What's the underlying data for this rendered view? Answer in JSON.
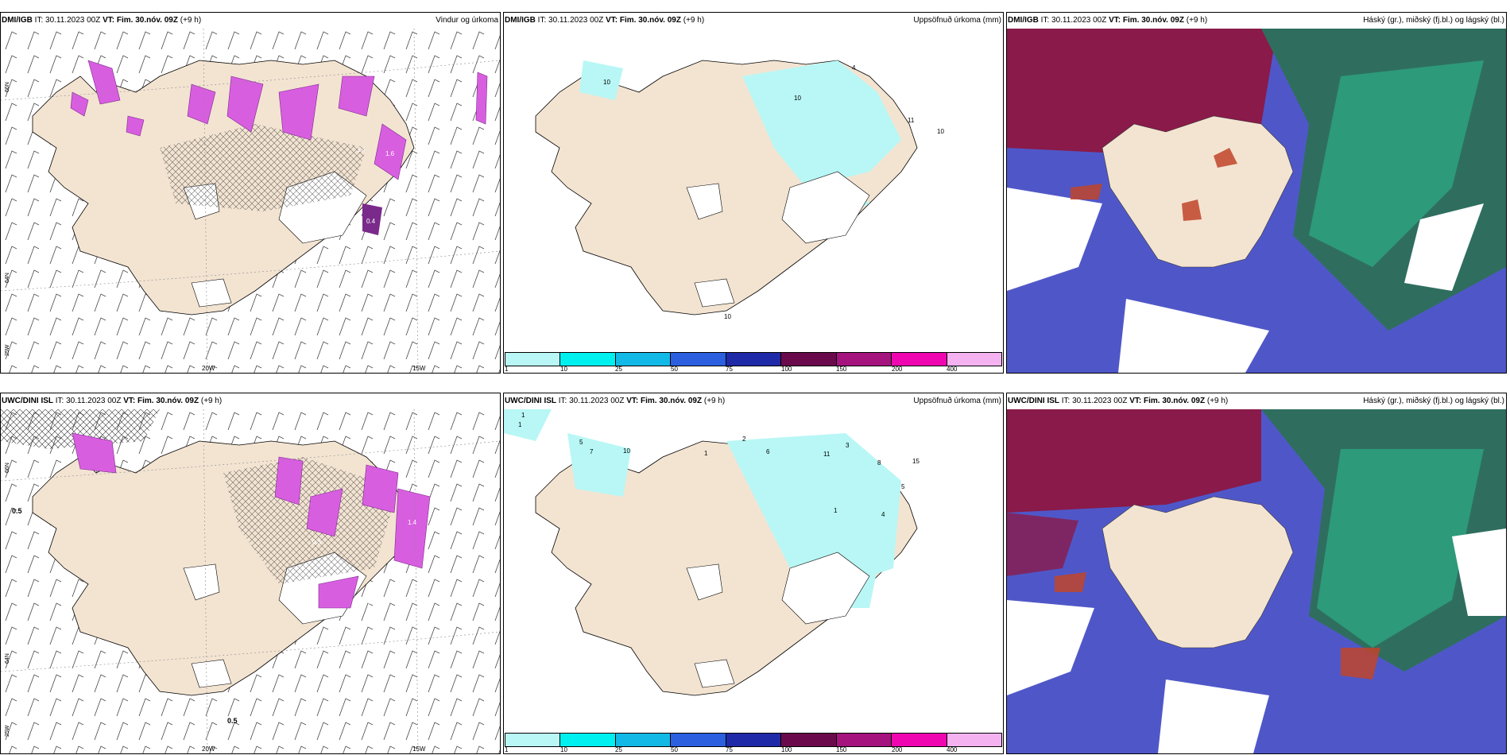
{
  "panels": [
    {
      "source": "DMI/IGB",
      "it_label": "IT:",
      "it": "30.11.2023 00Z",
      "vt_label": "VT:",
      "vt": "Fim. 30.nóv. 09Z",
      "lead": "(+9 h)",
      "title": "Vindur og úrkoma"
    },
    {
      "source": "DMI/IGB",
      "it_label": "IT:",
      "it": "30.11.2023 00Z",
      "vt_label": "VT:",
      "vt": "Fim. 30.nóv. 09Z",
      "lead": "(+9 h)",
      "title": "Uppsöfnuð úrkoma (mm)"
    },
    {
      "source": "DMI/IGB",
      "it_label": "IT:",
      "it": "30.11.2023 00Z",
      "vt_label": "VT:",
      "vt": "Fim. 30.nóv. 09Z",
      "lead": "(+9 h)",
      "title": "Háský (gr.), miðský (fj.bl.) og lágský (bl.)"
    },
    {
      "source": "UWC/DINI ISL",
      "it_label": "IT:",
      "it": "30.11.2023 00Z",
      "vt_label": "VT:",
      "vt": "Fim. 30.nóv. 09Z",
      "lead": "(+9 h)",
      "title": "Uppsöfnuð úrkoma (mm)"
    },
    {
      "source": "UWC/DINI ISL",
      "it_label": "IT:",
      "it": "30.11.2023 00Z",
      "vt_label": "VT:",
      "vt": "Fim. 30.nóv. 09Z",
      "lead": "(+9 h)",
      "title": "Uppsöfnuð úrkoma (mm)"
    },
    {
      "source": "UWC/DINI ISL",
      "it_label": "IT:",
      "it": "30.11.2023 00Z",
      "vt_label": "VT:",
      "vt": "Fim. 30.nóv. 09Z",
      "lead": "(+9 h)",
      "title": "Háský (gr.), miðský (fj.bl.) og lágský (bl.)"
    }
  ],
  "grid_labels": {
    "lat66": "66N",
    "lat64": "64N",
    "lon25": "25W",
    "lon20": "20W",
    "lon15": "15W"
  },
  "colorbar": {
    "ticks": [
      "1",
      "10",
      "25",
      "50",
      "75",
      "100",
      "150",
      "200",
      "400"
    ],
    "colors": [
      "#b8f7f5",
      "#00f0f0",
      "#12b9e6",
      "#2b5fe0",
      "#1f2aa8",
      "#6a0a4c",
      "#a5137e",
      "#f006b0",
      "#f5b2f0"
    ]
  },
  "colors": {
    "land": "#f3e4d2",
    "precip": "#d85ee0",
    "cloud_high": "#2f6e5f",
    "cloud_mid": "#8a1a4a",
    "cloud_low": "#4f57c8"
  },
  "panel1": {
    "labels": [
      "1.4",
      "1.6",
      "0.4"
    ]
  },
  "panel2": {
    "labels": [
      "10",
      "10",
      "4",
      "11",
      "10",
      "10"
    ]
  },
  "panel4": {
    "labels": [
      "0.5",
      "0.5",
      "1.4",
      "0.3",
      "0.6"
    ]
  },
  "panel5": {
    "labels": [
      "1",
      "1",
      "5",
      "7",
      "10",
      "2",
      "1",
      "6",
      "11",
      "15",
      "3",
      "8",
      "5",
      "1",
      "4"
    ]
  }
}
